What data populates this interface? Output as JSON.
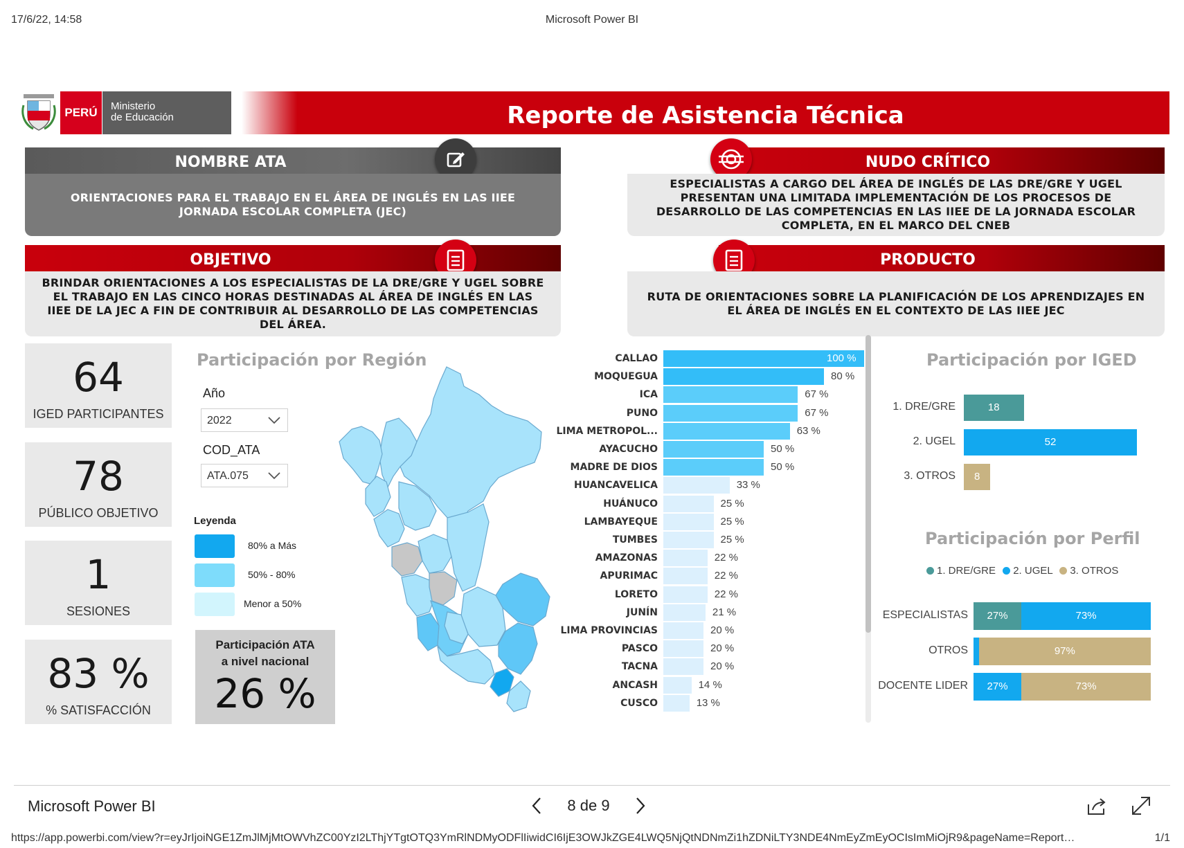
{
  "print": {
    "date": "17/6/22, 14:58",
    "title": "Microsoft Power BI",
    "url": "https://app.powerbi.com/view?r=eyJrIjoiNGE1ZmJlMjMtOWVhZC00YzI2LThjYTgtOTQ3YmRlNDMyODFlIiwidCI6IjE3OWJkZGE4LWQ5NjQtNDNmZi1hZDNiLTY3NDE4NmEyZmEyOCIsImMiOjR9&pageName=ReportSection",
    "url_display": "https://app.powerbi.com/view?r=eyJrIjoiNGE1ZmJlMjMtOWVhZC00YzI2LThjYTgtOTQ3YmRlNDMyODFlIiwidCI6IjE3OWJkZGE4LWQ5NjQtNDNmZi1hZDNiLTY3NDE4NmEyZmEyOCIsImMiOjR9&pageName=Report…",
    "page": "1/1"
  },
  "logo": {
    "peru": "PERÚ",
    "ministerio_line1": "Ministerio",
    "ministerio_line2": "de Educación"
  },
  "report_title": "Reporte de Asistencia Técnica",
  "sections": {
    "nombre_ata": {
      "title": "NOMBRE ATA",
      "text": "ORIENTACIONES PARA EL TRABAJO EN EL ÁREA DE INGLÉS EN LAS IIEE JORNADA ESCOLAR COMPLETA (JEC)"
    },
    "nudo_critico": {
      "title": "NUDO CRÍTICO",
      "text": "ESPECIALISTAS A CARGO DEL ÁREA DE INGLÉS DE LAS DRE/GRE Y UGEL PRESENTAN UNA LIMITADA IMPLEMENTACIÓN DE LOS PROCESOS DE DESARROLLO DE LAS COMPETENCIAS EN LAS IIEE DE LA JORNADA ESCOLAR COMPLETA, EN EL MARCO DEL CNEB"
    },
    "objetivo": {
      "title": "OBJETIVO",
      "text": "BRINDAR ORIENTACIONES A LOS ESPECIALISTAS DE LA DRE/GRE Y UGEL SOBRE EL TRABAJO EN LAS CINCO HORAS DESTINADAS AL ÁREA DE INGLÉS EN LAS IIEE DE LA JEC A FIN DE CONTRIBUIR AL DESARROLLO DE LAS COMPETENCIAS DEL ÁREA."
    },
    "producto": {
      "title": "PRODUCTO",
      "text": "RUTA DE ORIENTACIONES SOBRE LA PLANIFICACIÓN DE LOS APRENDIZAJES EN EL ÁREA DE INGLÉS EN EL CONTEXTO DE LAS IIEE JEC"
    }
  },
  "kpis": [
    {
      "value": "64",
      "label": "IGED PARTICIPANTES"
    },
    {
      "value": "78",
      "label": "PÚBLICO OBJETIVO"
    },
    {
      "value": "1",
      "label": "SESIONES"
    },
    {
      "value": "83 %",
      "label": "% SATISFACCIÓN"
    }
  ],
  "region_panel": {
    "title": "Participación por Región",
    "year_label": "Año",
    "year_value": "2022",
    "cod_label": "COD_ATA",
    "cod_value": "ATA.075",
    "legend_title": "Leyenda",
    "legend": [
      {
        "label": "80% a Más",
        "color": "#12a8ef"
      },
      {
        "label": "50% - 80%",
        "color": "#7edcfb"
      },
      {
        "label": "Menor a 50%",
        "color": "#d2f5fd"
      }
    ],
    "national_title_1": "Participación ATA",
    "national_title_2": "a nivel nacional",
    "national_value": "26 %"
  },
  "chart_data": [
    {
      "type": "bar",
      "orientation": "horizontal",
      "categories": [
        "CALLAO",
        "MOQUEGUA",
        "ICA",
        "PUNO",
        "LIMA METROPOL...",
        "AYACUCHO",
        "MADRE DE DIOS",
        "HUANCAVELICA",
        "HUÁNUCO",
        "LAMBAYEQUE",
        "TUMBES",
        "AMAZONAS",
        "APURIMAC",
        "LORETO",
        "JUNÍN",
        "LIMA PROVINCIAS",
        "PASCO",
        "TACNA",
        "ANCASH",
        "CUSCO"
      ],
      "values": [
        100,
        80,
        67,
        67,
        63,
        50,
        50,
        33,
        25,
        25,
        25,
        22,
        22,
        22,
        21,
        20,
        20,
        20,
        14,
        13
      ],
      "value_labels": [
        "100 %",
        "80 %",
        "67 %",
        "67 %",
        "63 %",
        "50 %",
        "50 %",
        "33 %",
        "25 %",
        "25 %",
        "25 %",
        "22 %",
        "22 %",
        "22 %",
        "21 %",
        "20 %",
        "20 %",
        "20 %",
        "14 %",
        "13 %"
      ],
      "colors": {
        "high": "#33bdf8",
        "mid": "#5bcdfa",
        "low": "#dcf0fd"
      },
      "xlim": [
        0,
        100
      ]
    },
    {
      "type": "bar",
      "orientation": "horizontal",
      "title": "Participación por IGED",
      "categories": [
        "1. DRE/GRE",
        "2. UGEL",
        "3. OTROS"
      ],
      "values": [
        18,
        52,
        8
      ],
      "colors": [
        "#4a9a99",
        "#12a8ef",
        "#c8b382"
      ]
    },
    {
      "type": "bar",
      "orientation": "horizontal",
      "stacked": true,
      "percent": true,
      "title": "Participación por Perfil",
      "categories": [
        "ESPECIALISTAS",
        "OTROS",
        "DOCENTE LIDER"
      ],
      "legend_position": "top",
      "series": [
        {
          "name": "1. DRE/GRE",
          "color": "#4a9a99",
          "values": [
            27,
            0,
            0
          ],
          "labels": [
            "27%",
            "",
            ""
          ]
        },
        {
          "name": "2. UGEL",
          "color": "#12a8ef",
          "values": [
            73,
            3,
            27
          ],
          "labels": [
            "73%",
            "",
            "27%"
          ]
        },
        {
          "name": "3. OTROS",
          "color": "#c8b382",
          "values": [
            0,
            97,
            73
          ],
          "labels": [
            "",
            "97%",
            "73%"
          ]
        }
      ]
    }
  ],
  "footer": {
    "brand": "Microsoft Power BI",
    "page_indicator": "8 de 9"
  },
  "colors": {
    "brand_red": "#c9000c",
    "grey": "#7a7a7a"
  }
}
